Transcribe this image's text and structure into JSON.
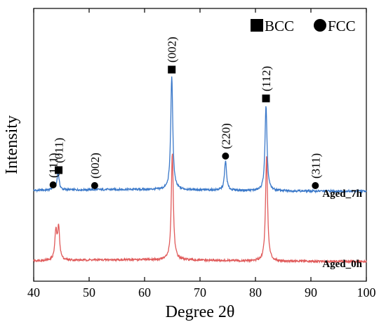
{
  "chart_data": {
    "type": "line",
    "title": "",
    "xlabel": "Degree 2θ",
    "ylabel": "Intensity",
    "xlim": [
      40,
      100
    ],
    "x_ticks": [
      40,
      50,
      60,
      70,
      80,
      90,
      100
    ],
    "y_ticks_shown": false,
    "grid": false,
    "legend": {
      "position": "top-right",
      "entries": [
        {
          "marker": "square",
          "label": "BCC"
        },
        {
          "marker": "circle",
          "label": "FCC"
        }
      ]
    },
    "series": [
      {
        "name": "Aged_7h",
        "color": "#3a78c9",
        "baseline": 1.0,
        "peaks": [
          {
            "x": 43.6,
            "h": 0.08
          },
          {
            "x": 44.4,
            "h": 0.25
          },
          {
            "x": 64.9,
            "h": 1.62
          },
          {
            "x": 74.6,
            "h": 0.42
          },
          {
            "x": 81.9,
            "h": 1.2
          }
        ]
      },
      {
        "name": "Aged_0h",
        "color": "#e05a5a",
        "baseline": 0.0,
        "peaks": [
          {
            "x": 44.0,
            "h": 0.4
          },
          {
            "x": 44.5,
            "h": 0.45
          },
          {
            "x": 65.0,
            "h": 1.52
          },
          {
            "x": 82.0,
            "h": 1.48
          }
        ]
      }
    ],
    "annotations": [
      {
        "label": "(111)",
        "x": 43.5,
        "marker": "circle",
        "y": 1.09
      },
      {
        "label": "(011)",
        "x": 44.5,
        "marker": "square",
        "y": 1.3
      },
      {
        "label": "(002)",
        "x": 51.0,
        "marker": "circle",
        "y": 1.08
      },
      {
        "label": "(002)",
        "x": 64.9,
        "marker": "square",
        "y": 2.73
      },
      {
        "label": "(220)",
        "x": 74.6,
        "marker": "circle",
        "y": 1.5
      },
      {
        "label": "(112)",
        "x": 81.9,
        "marker": "square",
        "y": 2.32
      },
      {
        "label": "(311)",
        "x": 90.8,
        "marker": "circle",
        "y": 1.08
      }
    ]
  }
}
